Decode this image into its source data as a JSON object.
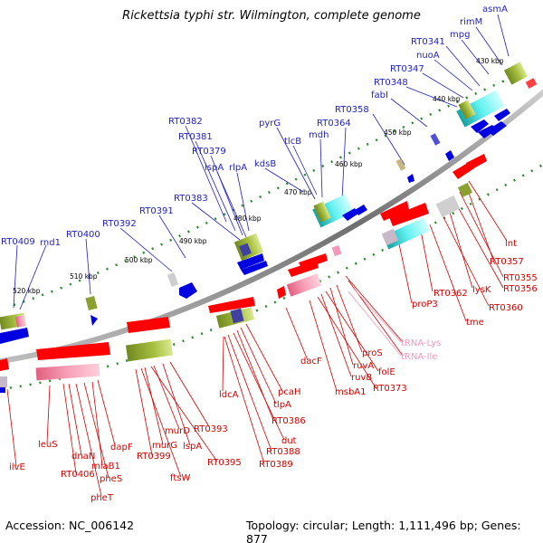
{
  "title": "Rickettsia typhi str. Wilmington, complete genome",
  "accession": "Accession: NC_006142",
  "summary": "Topology: circular; Length: 1,111,496 bp; Genes: 877",
  "colors": {
    "forward_gene_label": "#1e1ec8",
    "reverse_gene_label": "#d40000",
    "rna_gene_label": "#f49ab8",
    "forward_arrow": "#0000e0",
    "reverse_arrow": "#ff0000",
    "backbone": "#888888",
    "tick": "#2a8a2a"
  },
  "kbp_ticks": [
    "430 kbp",
    "440 kbp",
    "450 kbp",
    "460 kbp",
    "470 kbp",
    "480 kbp",
    "490 kbp",
    "500 kbp",
    "510 kbp",
    "520 kbp"
  ],
  "top_labels": [
    "asmA",
    "rimM",
    "mpg",
    "RT0341",
    "nuoA",
    "RT0347",
    "RT0348",
    "fabI",
    "RT0358",
    "RT0364",
    "pyrG",
    "mdh",
    "tlcB",
    "kdsB",
    "RT0382",
    "RT0381",
    "RT0379",
    "lspA",
    "rlpA",
    "RT0383",
    "RT0391",
    "RT0392",
    "RT0400",
    "RT0409",
    "rnd1"
  ],
  "bottom_labels": [
    "lnt",
    "RT0357",
    "RT0355",
    "RT0356",
    "lysK",
    "RT0360",
    "RT0362",
    "tme",
    "proP3",
    "tRNA-Lys",
    "tRNA-Ile",
    "proS",
    "ruvA",
    "folE",
    "ruvB",
    "RT0373",
    "msbA1",
    "dacF",
    "pcaH",
    "tlpA",
    "RT0386",
    "dut",
    "RT0388",
    "RT0389",
    "ldcA",
    "RT0393",
    "murD",
    "lspA",
    "murG",
    "RT0395",
    "RT0399",
    "ftsW",
    "dapF",
    "miaB1",
    "pheS",
    "pheT",
    "dnaN",
    "RT0406",
    "leuS",
    "ilvE"
  ]
}
